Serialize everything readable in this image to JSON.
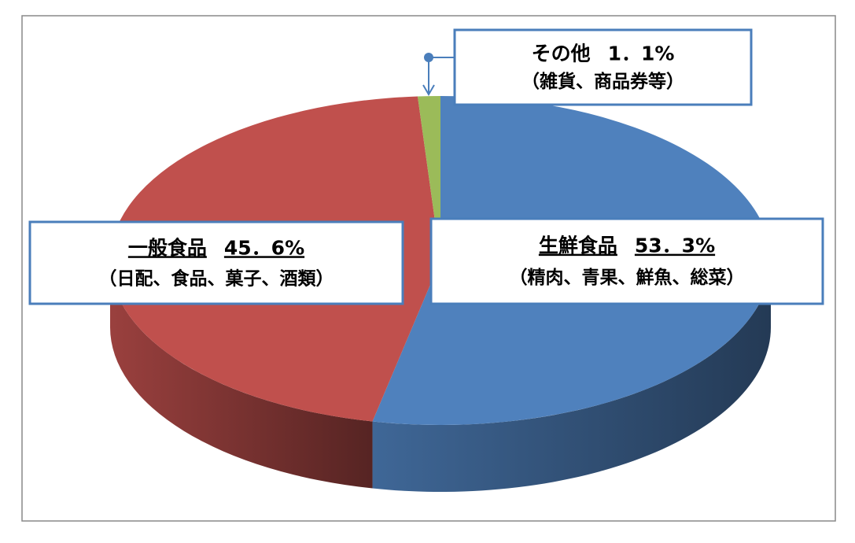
{
  "chart_data": {
    "type": "pie",
    "categories": [
      "生鮮食品",
      "一般食品",
      "その他"
    ],
    "values": [
      53.3,
      45.6,
      1.1
    ],
    "value_labels": [
      "53．3%",
      "45．6%",
      "1．1%"
    ],
    "descriptions": [
      "（精肉、青果、鮮魚、総菜）",
      "（日配、食品、菓子、酒類）",
      "（雑貨、商品券等）"
    ],
    "colors": [
      "#4f81bd",
      "#c0504d",
      "#9bbb59"
    ]
  }
}
